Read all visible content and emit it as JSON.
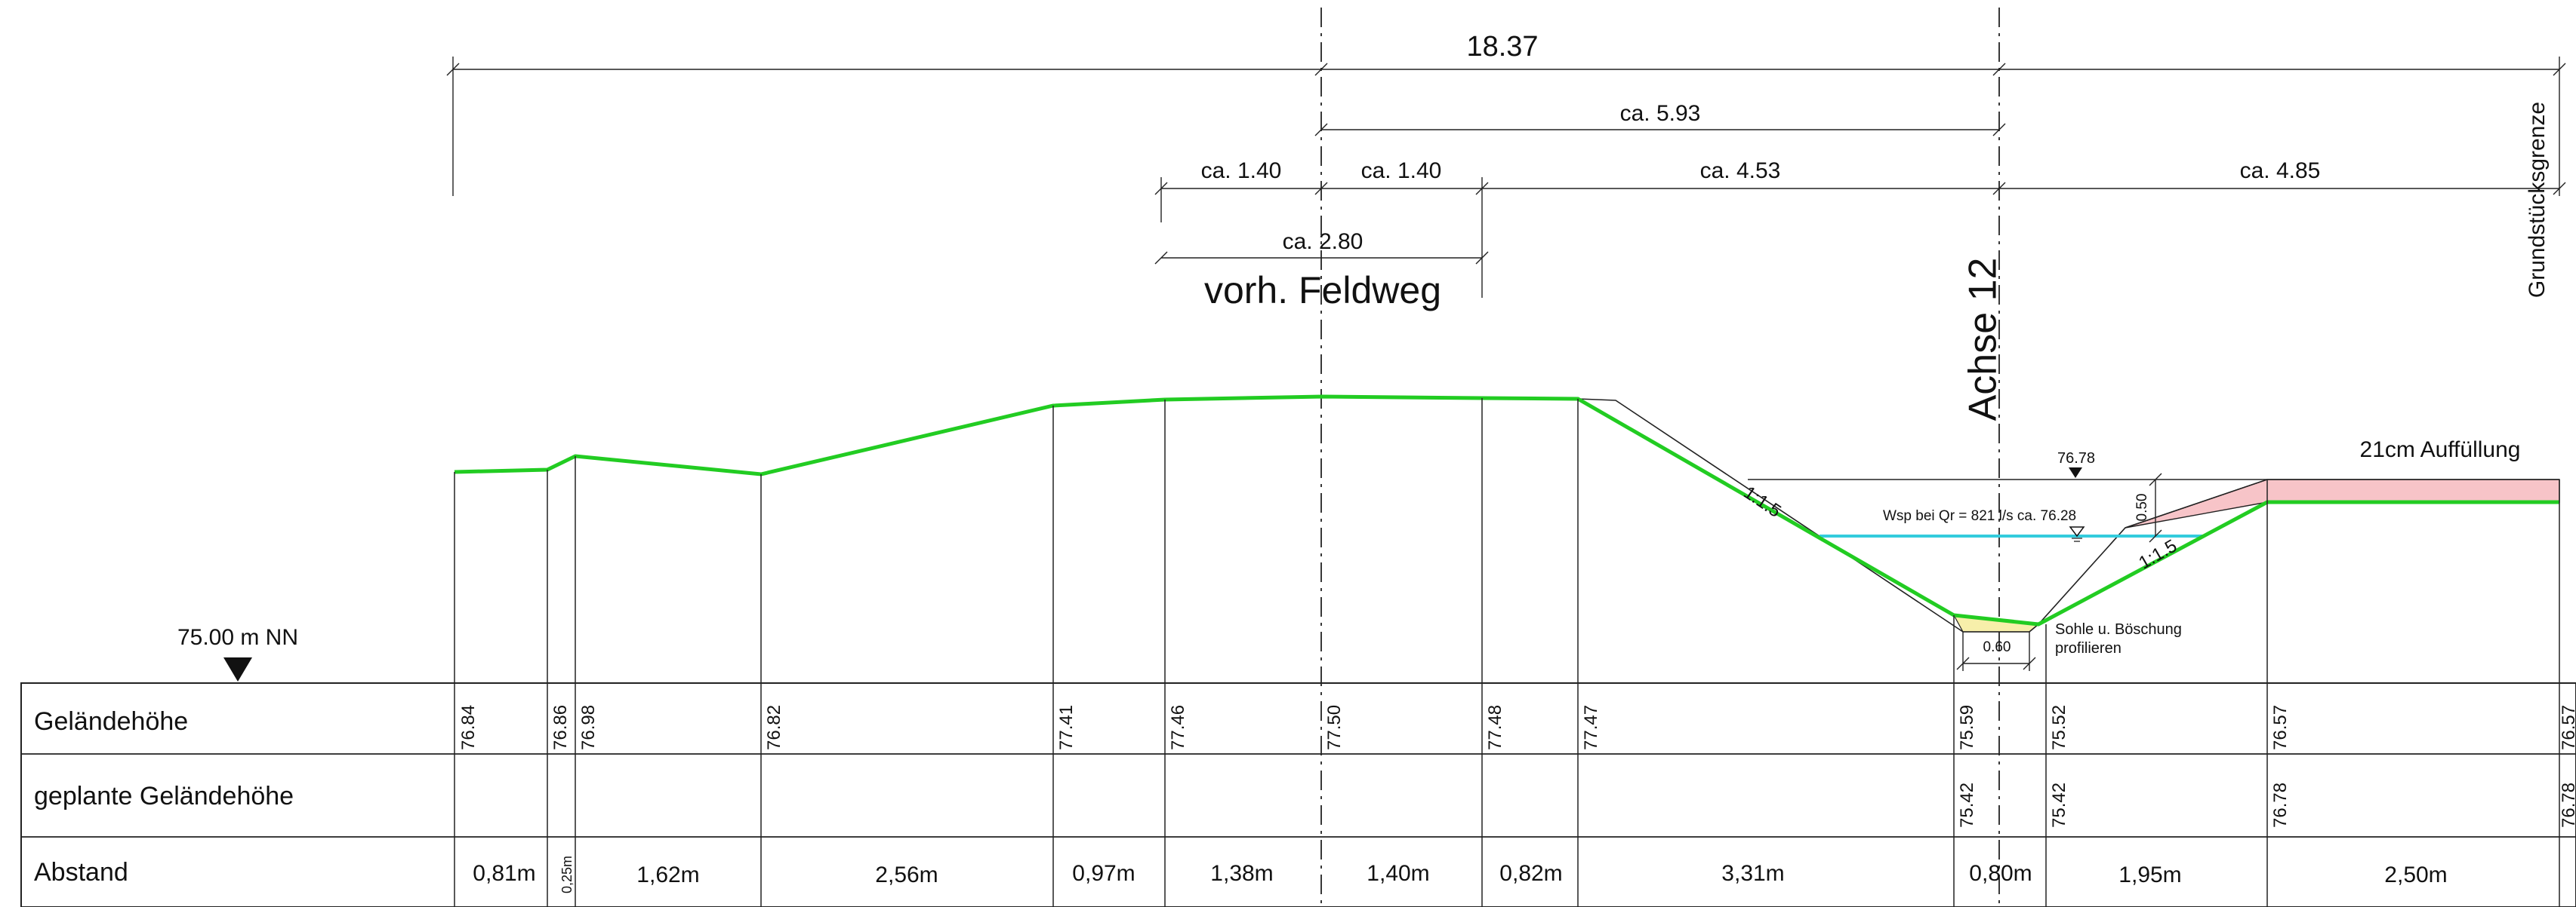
{
  "dimensions": {
    "total": "18.37",
    "axis_offset": "ca. 5.93",
    "left_half": "ca. 1.40",
    "right_half": "ca. 1.40",
    "to_axis": "ca. 4.53",
    "right_part": "ca. 4.85",
    "path_width": "ca. 2.80"
  },
  "labels": {
    "path": "vorh. Feldweg",
    "axis": "Achse 12",
    "boundary": "Grundstücksgrenze",
    "fill": "21cm Auffüllung",
    "datum": "75.00 m NN",
    "water_level": "Wsp bei Qr = 821 l/s ca. 76.28",
    "top_level": "76.78",
    "depth": "0.50",
    "sole_width": "0.60",
    "slope_left": "1:1.5",
    "slope_right": "1:1.5",
    "note_line1": "Sohle u. Böschung",
    "note_line2": "profilieren"
  },
  "table": {
    "row_labels": [
      "Geländehöhe",
      "geplante Geländehöhe",
      "Abstand"
    ],
    "gelaendehoehe": [
      "76.84",
      "76.86",
      "76.98",
      "76.82",
      "77.41",
      "77.46",
      "77.50",
      "77.48",
      "77.47",
      "75.59",
      "75.52",
      "76.57",
      "76.57"
    ],
    "geplant": [
      "75.42",
      "75.42",
      "76.78",
      "76.78"
    ],
    "abstand": [
      "0,81m",
      "0,25m",
      "1,62m",
      "2,56m",
      "0,97m",
      "1,38m",
      "1,40m",
      "0,82m",
      "3,31m",
      "0,80m",
      "1,95m",
      "2,50m"
    ]
  },
  "colors": {
    "terrain": "#22cc22",
    "water": "#33ccdd",
    "fill": "#f7c4c8",
    "sole": "#f7efaa"
  }
}
